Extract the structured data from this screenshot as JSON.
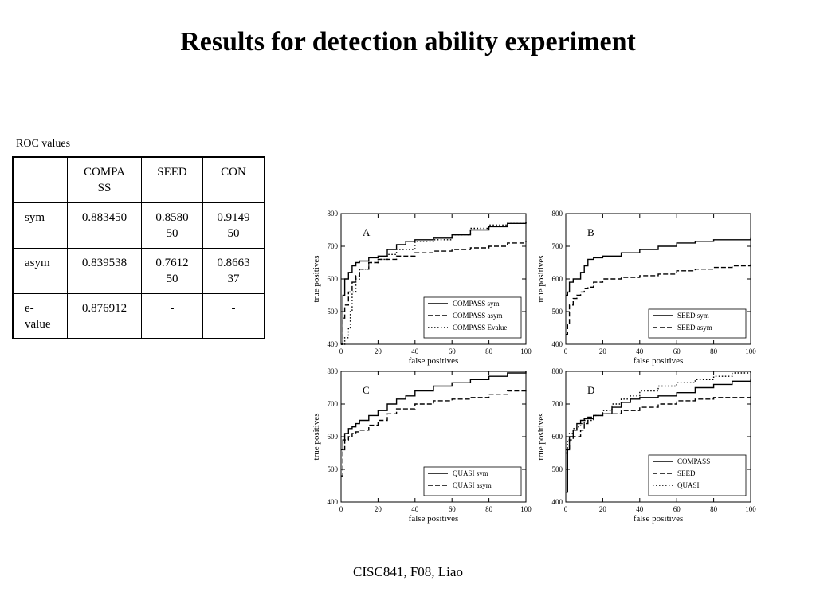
{
  "title": "Results for detection ability experiment",
  "table": {
    "caption": "ROC values",
    "header": [
      "",
      "COMPA\nSS",
      "SEED",
      "CON"
    ],
    "rows": [
      [
        "sym",
        "0.883450",
        "0.8580\n50",
        "0.9149\n50"
      ],
      [
        "asym",
        "0.839538",
        "0.7612\n50",
        "0.8663\n37"
      ],
      [
        "e-\nvalue",
        "0.876912",
        "-",
        "-"
      ]
    ]
  },
  "chart_data": [
    {
      "type": "line",
      "panel_label": "A",
      "xlabel": "false positives",
      "ylabel": "true positives",
      "xlim": [
        0,
        100
      ],
      "ylim": [
        400,
        800
      ],
      "xticks": [
        0,
        20,
        40,
        60,
        80,
        100
      ],
      "yticks": [
        400,
        500,
        600,
        700,
        800
      ],
      "legend_position": "bottom-right",
      "series": [
        {
          "name": "COMPASS sym",
          "style": "solid",
          "x": [
            0,
            1,
            2,
            4,
            6,
            8,
            10,
            15,
            20,
            25,
            30,
            35,
            40,
            50,
            60,
            70,
            80,
            90,
            100
          ],
          "y": [
            400,
            550,
            600,
            620,
            640,
            650,
            655,
            665,
            670,
            690,
            705,
            715,
            720,
            725,
            735,
            750,
            760,
            770,
            775
          ]
        },
        {
          "name": "COMPASS asym",
          "style": "dashed",
          "x": [
            0,
            1,
            2,
            4,
            6,
            8,
            10,
            15,
            20,
            30,
            40,
            50,
            60,
            70,
            80,
            90,
            100
          ],
          "y": [
            400,
            480,
            520,
            560,
            590,
            610,
            630,
            650,
            660,
            670,
            680,
            685,
            690,
            695,
            700,
            710,
            715
          ]
        },
        {
          "name": "COMPASS Evalue",
          "style": "dotted",
          "x": [
            0,
            2,
            4,
            5,
            6,
            8,
            10,
            15,
            20,
            25,
            30,
            40,
            50,
            60,
            70,
            80,
            90,
            100
          ],
          "y": [
            400,
            420,
            450,
            500,
            560,
            600,
            630,
            650,
            660,
            675,
            690,
            715,
            720,
            735,
            755,
            765,
            770,
            775
          ]
        }
      ]
    },
    {
      "type": "line",
      "panel_label": "B",
      "xlabel": "false positives",
      "ylabel": "true positives",
      "xlim": [
        0,
        100
      ],
      "ylim": [
        400,
        800
      ],
      "xticks": [
        0,
        20,
        40,
        60,
        80,
        100
      ],
      "yticks": [
        400,
        500,
        600,
        700,
        800
      ],
      "legend_position": "bottom-right",
      "series": [
        {
          "name": "SEED sym",
          "style": "solid",
          "x": [
            0,
            1,
            2,
            4,
            6,
            8,
            10,
            12,
            15,
            20,
            30,
            40,
            50,
            60,
            70,
            80,
            90,
            100
          ],
          "y": [
            550,
            560,
            590,
            600,
            600,
            620,
            640,
            660,
            665,
            670,
            680,
            690,
            700,
            710,
            715,
            720,
            720,
            725
          ]
        },
        {
          "name": "SEED asym",
          "style": "dashed",
          "x": [
            0,
            1,
            2,
            4,
            6,
            8,
            10,
            12,
            15,
            20,
            30,
            40,
            50,
            60,
            70,
            80,
            90,
            100
          ],
          "y": [
            430,
            460,
            520,
            540,
            550,
            560,
            570,
            575,
            590,
            600,
            605,
            610,
            615,
            625,
            630,
            635,
            640,
            645
          ]
        }
      ]
    },
    {
      "type": "line",
      "panel_label": "C",
      "xlabel": "false positives",
      "ylabel": "true positives",
      "xlim": [
        0,
        100
      ],
      "ylim": [
        400,
        800
      ],
      "xticks": [
        0,
        20,
        40,
        60,
        80,
        100
      ],
      "yticks": [
        400,
        500,
        600,
        700,
        800
      ],
      "legend_position": "bottom-right",
      "series": [
        {
          "name": "QUASI sym",
          "style": "solid",
          "x": [
            0,
            1,
            2,
            4,
            6,
            8,
            10,
            15,
            20,
            25,
            30,
            35,
            40,
            50,
            60,
            70,
            80,
            90,
            100
          ],
          "y": [
            560,
            590,
            610,
            625,
            630,
            640,
            650,
            665,
            680,
            700,
            715,
            725,
            740,
            755,
            765,
            775,
            785,
            795,
            800
          ]
        },
        {
          "name": "QUASI asym",
          "style": "dashed",
          "x": [
            0,
            1,
            2,
            4,
            6,
            8,
            10,
            15,
            20,
            25,
            30,
            40,
            50,
            60,
            70,
            80,
            90,
            100
          ],
          "y": [
            480,
            560,
            590,
            600,
            610,
            615,
            620,
            635,
            650,
            670,
            685,
            700,
            710,
            715,
            720,
            730,
            740,
            745
          ]
        }
      ]
    },
    {
      "type": "line",
      "panel_label": "D",
      "xlabel": "false positives",
      "ylabel": "true positives",
      "xlim": [
        0,
        100
      ],
      "ylim": [
        400,
        800
      ],
      "xticks": [
        0,
        20,
        40,
        60,
        80,
        100
      ],
      "yticks": [
        400,
        500,
        600,
        700,
        800
      ],
      "legend_position": "bottom-right",
      "series": [
        {
          "name": "COMPASS",
          "style": "solid",
          "x": [
            0,
            1,
            2,
            4,
            6,
            8,
            10,
            15,
            20,
            25,
            30,
            35,
            40,
            50,
            60,
            70,
            80,
            90,
            100
          ],
          "y": [
            430,
            560,
            600,
            620,
            640,
            650,
            655,
            665,
            670,
            690,
            705,
            715,
            720,
            725,
            735,
            750,
            760,
            770,
            775
          ]
        },
        {
          "name": "SEED",
          "style": "dashed",
          "x": [
            0,
            1,
            2,
            4,
            6,
            8,
            10,
            12,
            15,
            20,
            30,
            40,
            50,
            60,
            70,
            80,
            90,
            100
          ],
          "y": [
            550,
            560,
            590,
            600,
            600,
            620,
            640,
            660,
            665,
            670,
            680,
            690,
            700,
            710,
            715,
            720,
            720,
            725
          ]
        },
        {
          "name": "QUASI",
          "style": "dotted",
          "x": [
            0,
            1,
            2,
            4,
            6,
            8,
            10,
            15,
            20,
            25,
            30,
            35,
            40,
            50,
            60,
            70,
            80,
            90,
            100
          ],
          "y": [
            560,
            590,
            610,
            625,
            630,
            640,
            650,
            665,
            680,
            700,
            715,
            725,
            740,
            755,
            765,
            775,
            785,
            795,
            800
          ]
        }
      ]
    }
  ],
  "footer": "CISC841, F08, Liao"
}
